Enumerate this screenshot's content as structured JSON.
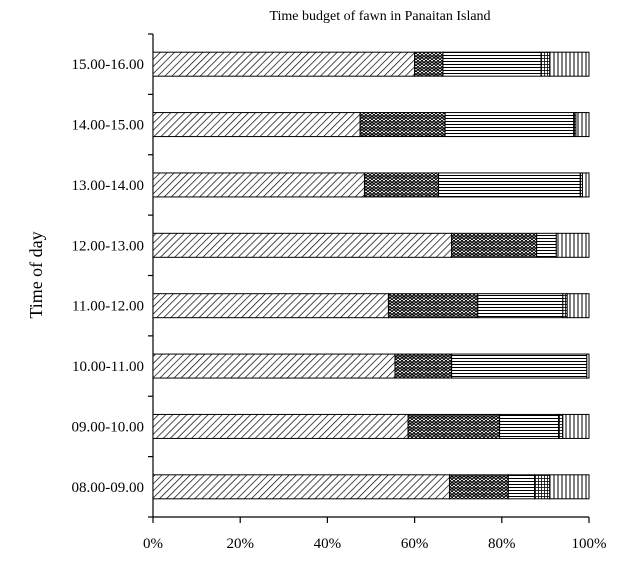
{
  "chart_data": {
    "type": "bar",
    "orientation": "horizontal",
    "stacked": true,
    "percent": true,
    "title": "Time budget of fawn in Panaitan Island",
    "ylabel": "Time of day",
    "xlabel": "",
    "xlim": [
      0,
      100
    ],
    "xticks": [
      "0%",
      "20%",
      "40%",
      "60%",
      "80%",
      "100%"
    ],
    "categories": [
      "15.00-16.00",
      "14.00-15.00",
      "13.00-14.00",
      "12.00-13.00",
      "11.00-12.00",
      "10.00-11.00",
      "09.00-10.00",
      "08.00-09.00"
    ],
    "series": [
      {
        "values": [
          60,
          47.5,
          48.5,
          68.5,
          54,
          55.5,
          58.5,
          68
        ]
      },
      {
        "values": [
          6.5,
          19.5,
          17,
          19.5,
          20.5,
          13,
          21,
          13.5
        ]
      },
      {
        "values": [
          22.5,
          29.5,
          32.5,
          4.5,
          19.5,
          31,
          13.5,
          6
        ]
      },
      {
        "values": [
          2,
          0.5,
          0.5,
          0,
          1,
          0,
          1,
          3.5
        ]
      },
      {
        "values": [
          9,
          3,
          1.5,
          7.5,
          5,
          0.5,
          6,
          9
        ]
      }
    ],
    "legend": "none",
    "grid": false
  }
}
